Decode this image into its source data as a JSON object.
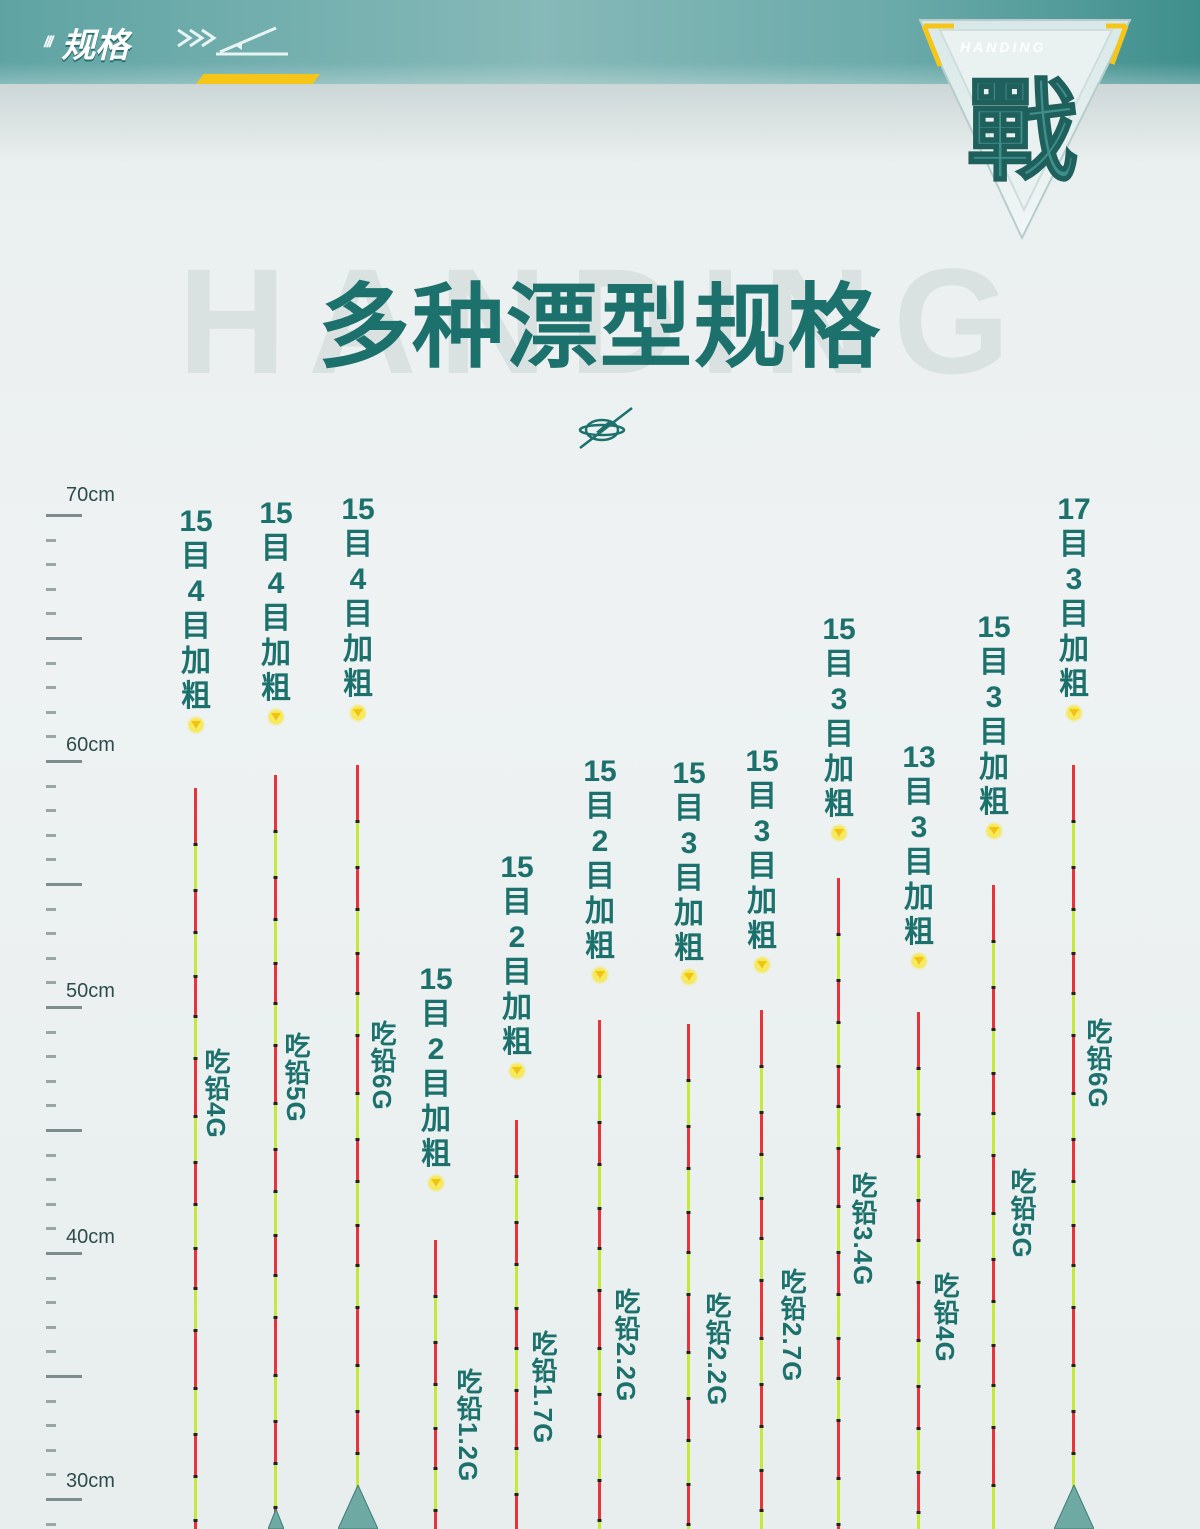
{
  "header": {
    "slashes": "///",
    "section_title": "规格",
    "brand_mark": "HANDING",
    "emblem_char": "戰"
  },
  "hero": {
    "watermark": "HANDING",
    "title": "多种漂型规格"
  },
  "ruler": {
    "labels": [
      "70cm",
      "60cm",
      "50cm",
      "40cm",
      "30cm"
    ]
  },
  "floats": [
    {
      "spec": [
        "15",
        "目",
        "4",
        "目",
        "加",
        "粗"
      ],
      "lead": "吃铅4G"
    },
    {
      "spec": [
        "15",
        "目",
        "4",
        "目",
        "加",
        "粗"
      ],
      "lead": "吃铅5G"
    },
    {
      "spec": [
        "15",
        "目",
        "4",
        "目",
        "加",
        "粗"
      ],
      "lead": "吃铅6G"
    },
    {
      "spec": [
        "15",
        "目",
        "2",
        "目",
        "加",
        "粗"
      ],
      "lead": "吃铅1.2G"
    },
    {
      "spec": [
        "15",
        "目",
        "2",
        "目",
        "加",
        "粗"
      ],
      "lead": "吃铅1.7G"
    },
    {
      "spec": [
        "15",
        "目",
        "2",
        "目",
        "加",
        "粗"
      ],
      "lead": "吃铅2.2G"
    },
    {
      "spec": [
        "15",
        "目",
        "3",
        "目",
        "加",
        "粗"
      ],
      "lead": "吃铅2.2G"
    },
    {
      "spec": [
        "15",
        "目",
        "3",
        "目",
        "加",
        "粗"
      ],
      "lead": "吃铅2.7G"
    },
    {
      "spec": [
        "15",
        "目",
        "3",
        "目",
        "加",
        "粗"
      ],
      "lead": "吃铅3.4G"
    },
    {
      "spec": [
        "13",
        "目",
        "3",
        "目",
        "加",
        "粗"
      ],
      "lead": "吃铅4G"
    },
    {
      "spec": [
        "15",
        "目",
        "3",
        "目",
        "加",
        "粗"
      ],
      "lead": "吃铅5G"
    },
    {
      "spec": [
        "17",
        "目",
        "3",
        "目",
        "加",
        "粗"
      ],
      "lead": "吃铅6G"
    }
  ],
  "colors": {
    "accent": "#1c716d",
    "band": "#6aaaa9",
    "highlight": "#f5c518",
    "stick_red": "#e8333a",
    "stick_green": "#c6e83a"
  }
}
